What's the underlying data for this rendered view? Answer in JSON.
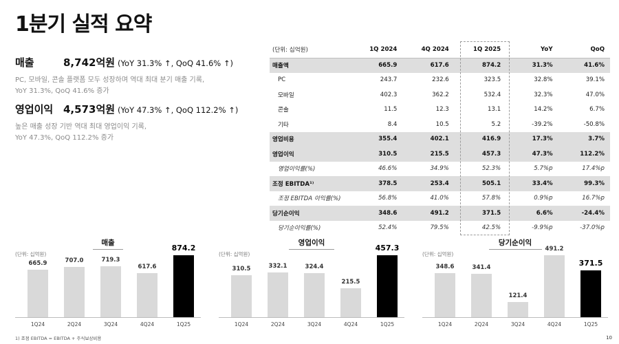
{
  "title": "1분기 실적 요약",
  "summary": {
    "revenue": {
      "name": "매출",
      "value": "8,742억원",
      "change": "(YoY 31.3% ↑, QoQ 41.6% ↑)",
      "desc1": "PC, 모바일, 콘솔 플랫폼 모두 성장하며 역대 최대 분기 매출 기록,",
      "desc2": "YoY 31.3%, QoQ 41.6% 증가"
    },
    "operating": {
      "name": "영업이익",
      "value": "4,573억원",
      "change": "(YoY 47.3% ↑, QoQ 112.2% ↑)",
      "desc1": "높은 매출 성장 기반 역대 최대 영업이익 기록,",
      "desc2": "YoY 47.3%, QoQ 112.2% 증가"
    }
  },
  "table": {
    "headers": [
      "(단위: 십억원)",
      "1Q 2024",
      "4Q 2024",
      "1Q 2025",
      "YoY",
      "QoQ"
    ],
    "rows": [
      {
        "style": "bold",
        "cells": [
          "매출액",
          "665.9",
          "617.6",
          "874.2",
          "31.3%",
          "41.6%"
        ]
      },
      {
        "style": "sub",
        "cells": [
          "PC",
          "243.7",
          "232.6",
          "323.5",
          "32.8%",
          "39.1%"
        ]
      },
      {
        "style": "sub",
        "cells": [
          "모바일",
          "402.3",
          "362.2",
          "532.4",
          "32.3%",
          "47.0%"
        ]
      },
      {
        "style": "sub",
        "cells": [
          "콘솔",
          "11.5",
          "12.3",
          "13.1",
          "14.2%",
          "6.7%"
        ]
      },
      {
        "style": "sub",
        "cells": [
          "기타",
          "8.4",
          "10.5",
          "5.2",
          "-39.2%",
          "-50.8%"
        ]
      },
      {
        "style": "bold",
        "cells": [
          "영업비용",
          "355.4",
          "402.1",
          "416.9",
          "17.3%",
          "3.7%"
        ]
      },
      {
        "style": "bold",
        "cells": [
          "영업이익",
          "310.5",
          "215.5",
          "457.3",
          "47.3%",
          "112.2%"
        ]
      },
      {
        "style": "italic",
        "cells": [
          "영업이익률(%)",
          "46.6%",
          "34.9%",
          "52.3%",
          "5.7%p",
          "17.4%p"
        ]
      },
      {
        "style": "bold",
        "cells": [
          "조정 EBITDA¹⁾",
          "378.5",
          "253.4",
          "505.1",
          "33.4%",
          "99.3%"
        ]
      },
      {
        "style": "italic",
        "cells": [
          "조정 EBITDA 이익률(%)",
          "56.8%",
          "41.0%",
          "57.8%",
          "0.9%p",
          "16.7%p"
        ]
      },
      {
        "style": "bold",
        "cells": [
          "당기순이익",
          "348.6",
          "491.2",
          "371.5",
          "6.6%",
          "-24.4%"
        ]
      },
      {
        "style": "italic",
        "cells": [
          "당기순이익률(%)",
          "52.4%",
          "79.5%",
          "42.5%",
          "-9.9%p",
          "-37.0%p"
        ]
      }
    ]
  },
  "chart_data": [
    {
      "type": "bar",
      "title": "매출",
      "unit": "(단위: 십억원)",
      "categories": [
        "1Q24",
        "2Q24",
        "3Q24",
        "4Q24",
        "1Q25"
      ],
      "values": [
        665.9,
        707.0,
        719.3,
        617.6,
        874.2
      ],
      "labels": [
        "665.9",
        "707.0",
        "719.3",
        "617.6",
        "874.2"
      ],
      "highlight_index": 4,
      "colors": {
        "normal": "#d9d9d9",
        "highlight": "#000000"
      }
    },
    {
      "type": "bar",
      "title": "영업이익",
      "unit": "(단위: 십억원)",
      "categories": [
        "1Q24",
        "2Q24",
        "3Q24",
        "4Q24",
        "1Q25"
      ],
      "values": [
        310.5,
        332.1,
        324.4,
        215.5,
        457.3
      ],
      "labels": [
        "310.5",
        "332.1",
        "324.4",
        "215.5",
        "457.3"
      ],
      "highlight_index": 4,
      "colors": {
        "normal": "#d9d9d9",
        "highlight": "#000000"
      }
    },
    {
      "type": "bar",
      "title": "당기순이익",
      "unit": "(단위: 십억원)",
      "categories": [
        "1Q24",
        "2Q24",
        "3Q24",
        "4Q24",
        "1Q25"
      ],
      "values": [
        348.6,
        341.4,
        121.4,
        491.2,
        371.5
      ],
      "labels": [
        "348.6",
        "341.4",
        "121.4",
        "491.2",
        "371.5"
      ],
      "highlight_index": 4,
      "colors": {
        "normal": "#d9d9d9",
        "highlight": "#000000"
      }
    }
  ],
  "footnote": "1) 조정 EBITDA = EBITDA + 주식보상비용",
  "page_number": "10"
}
